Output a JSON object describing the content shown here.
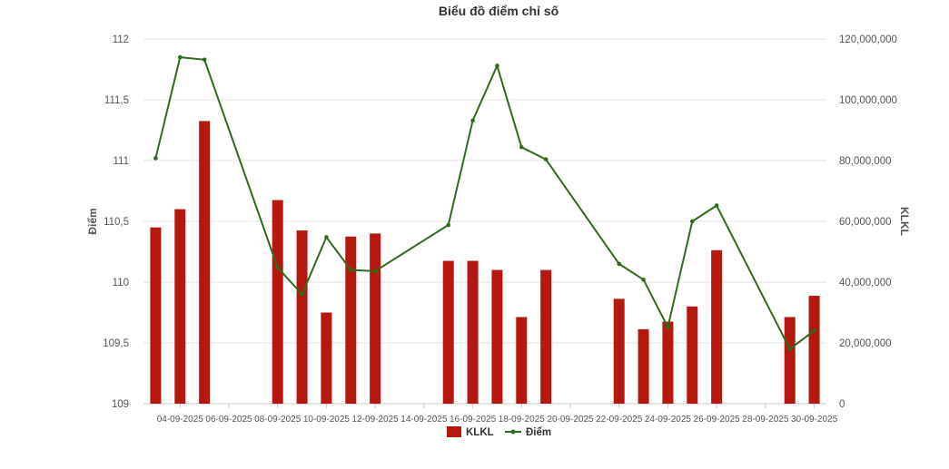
{
  "chart_data": {
    "type": "bar",
    "title": "Biểu đồ điểm chỉ số",
    "categories": [
      "03-09-2025",
      "04-09-2025",
      "05-09-2025",
      "08-09-2025",
      "09-09-2025",
      "10-09-2025",
      "11-09-2025",
      "12-09-2025",
      "15-09-2025",
      "16-09-2025",
      "17-09-2025",
      "18-09-2025",
      "19-09-2025",
      "22-09-2025",
      "23-09-2025",
      "24-09-2025",
      "25-09-2025",
      "26-09-2025",
      "29-09-2025",
      "30-09-2025"
    ],
    "x_tick_labels": [
      "04-09-2025",
      "06-09-2025",
      "08-09-2025",
      "10-09-2025",
      "12-09-2025",
      "14-09-2025",
      "16-09-2025",
      "18-09-2025",
      "20-09-2025",
      "22-09-2025",
      "24-09-2025",
      "26-09-2025",
      "28-09-2025",
      "30-09-2025"
    ],
    "x_start": "03-09-2025",
    "x_end": "30-09-2025",
    "series": [
      {
        "name": "KLKL",
        "type": "bar",
        "color": "#b5180f",
        "axis": "right",
        "values": [
          58000000,
          64000000,
          93000000,
          67000000,
          57000000,
          30000000,
          55000000,
          56000000,
          47000000,
          47000000,
          44000000,
          28500000,
          44000000,
          34500000,
          24500000,
          27000000,
          32000000,
          50500000,
          28500000,
          35500000
        ]
      },
      {
        "name": "Điểm",
        "type": "line",
        "color": "#2e6b1c",
        "axis": "left",
        "values": [
          111.02,
          111.85,
          111.83,
          110.12,
          109.9,
          110.37,
          110.1,
          110.09,
          110.47,
          111.33,
          111.78,
          111.11,
          111.01,
          110.15,
          110.02,
          109.63,
          110.5,
          110.63,
          109.45,
          109.6
        ]
      }
    ],
    "left_axis": {
      "label": "Điểm",
      "min": 109,
      "max": 112,
      "ticks": [
        "109",
        "109,5",
        "110",
        "110,5",
        "111",
        "111,5",
        "112"
      ]
    },
    "right_axis": {
      "label": "KLKL",
      "min": 0,
      "max": 120000000,
      "ticks": [
        "0",
        "20,000,000",
        "40,000,000",
        "60,000,000",
        "80,000,000",
        "100,000,000",
        "120,000,000"
      ]
    },
    "legend": {
      "position": "bottom",
      "items": [
        "KLKL",
        "Điểm"
      ]
    },
    "grid": true
  }
}
